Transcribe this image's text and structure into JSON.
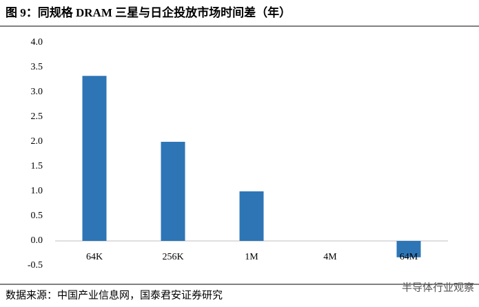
{
  "chart_data": {
    "type": "bar",
    "title": "图 9：同规格 DRAM 三星与日企投放市场时间差（年）",
    "source": "数据来源：中国产业信息网，国泰君安证券研究",
    "watermark": "半导体行业观察",
    "categories": [
      "64K",
      "256K",
      "1M",
      "4M",
      "64M"
    ],
    "values": [
      3.33,
      2.0,
      1.0,
      0,
      -0.33
    ],
    "color": "#2e75b6",
    "ylim": [
      -0.5,
      4.0
    ],
    "yticks": [
      {
        "value": -0.5,
        "label": "-0.5"
      },
      {
        "value": 0,
        "label": "0.0"
      },
      0.5,
      {
        "value": 1,
        "label": "1.0"
      },
      1.5,
      {
        "value": 2,
        "label": "2.0"
      },
      2.5,
      {
        "value": 3,
        "label": "3.0"
      },
      3.5,
      {
        "value": 4,
        "label": "4.0"
      }
    ],
    "grid": false
  }
}
